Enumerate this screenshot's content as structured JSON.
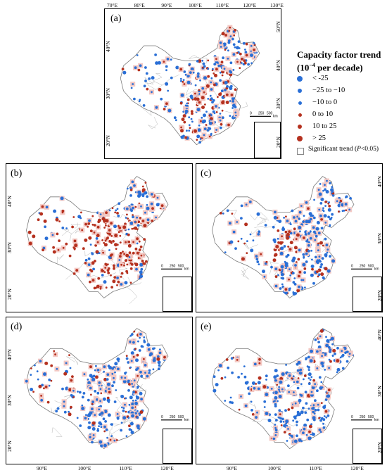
{
  "panels": [
    {
      "id": "a",
      "label": "(a)",
      "top_ticks": [
        "70°E",
        "80°E",
        "90°E",
        "100°E",
        "110°E",
        "120°E",
        "130°E"
      ],
      "right_ticks": [
        "50°N",
        "40°N",
        "30°N",
        "20°N"
      ],
      "left_ticks": [
        "40°N",
        "30°N",
        "20°N"
      ],
      "bottom_ticks": []
    },
    {
      "id": "b",
      "label": "(b)",
      "top_ticks": [],
      "right_ticks": [],
      "left_ticks": [
        "40°N",
        "30°N",
        "20°N"
      ],
      "bottom_ticks": []
    },
    {
      "id": "c",
      "label": "(c)",
      "top_ticks": [],
      "right_ticks": [
        "40°N",
        "30°N",
        "20°N"
      ],
      "left_ticks": [],
      "bottom_ticks": []
    },
    {
      "id": "d",
      "label": "(d)",
      "top_ticks": [],
      "right_ticks": [],
      "left_ticks": [
        "40°N",
        "30°N",
        "20°N"
      ],
      "bottom_ticks": [
        "90°E",
        "100°E",
        "110°E",
        "120°E"
      ]
    },
    {
      "id": "e",
      "label": "(e)",
      "top_ticks": [],
      "right_ticks": [
        "40°N",
        "30°N",
        "20°N"
      ],
      "left_ticks": [],
      "bottom_ticks": [
        "90°E",
        "100°E",
        "110°E",
        "120°E"
      ]
    }
  ],
  "scale": {
    "labels": [
      "0",
      "250",
      "500"
    ],
    "unit": "km",
    "ratio": "1:20,000,000"
  },
  "legend": {
    "title_line1": "Capacity factor trend",
    "title_line2_pre": "(10",
    "title_line2_sup": "−4",
    "title_line2_post": " per decade)",
    "items": [
      {
        "label": "< -25",
        "color": "#2a6fd6",
        "size": "large"
      },
      {
        "label": "−25 to −10",
        "color": "#2a6fd6",
        "size": "medium"
      },
      {
        "label": "−10 to 0",
        "color": "#2a6fd6",
        "size": "small"
      },
      {
        "label": "0 to 10",
        "color": "#b5311f",
        "size": "small"
      },
      {
        "label": "10 to 25",
        "color": "#b5311f",
        "size": "medium"
      },
      {
        "label": "> 25",
        "color": "#b5311f",
        "size": "large"
      }
    ],
    "significance_pre": "Significant trend (",
    "significance_em": "P",
    "significance_post": "<0.05)"
  },
  "colors": {
    "blue": "#2a6fd6",
    "red": "#b5311f",
    "highlight": "#f3c9c4",
    "border": "#7a7a7a"
  },
  "panel_trends": {
    "a": "mixed",
    "b": "red",
    "c": "blue-red",
    "d": "blue",
    "e": "blue"
  }
}
